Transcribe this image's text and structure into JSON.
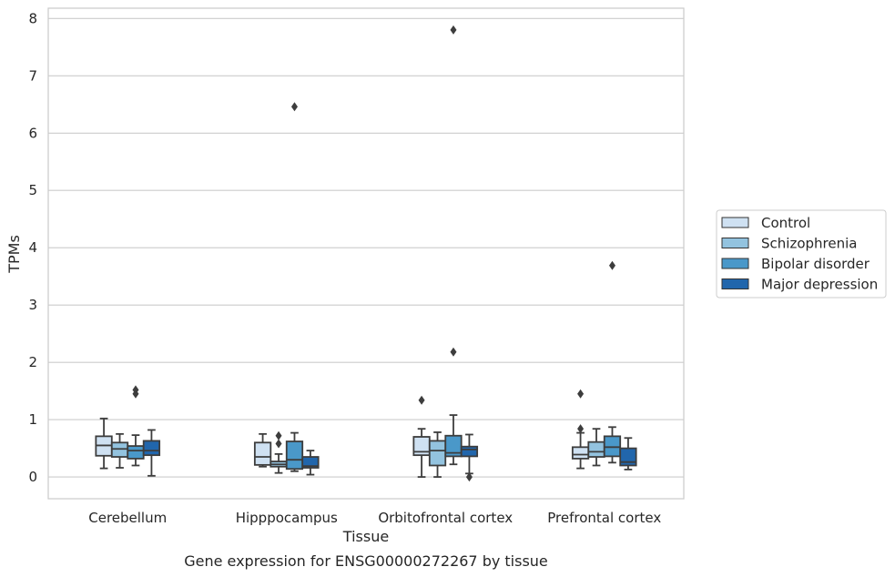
{
  "chart_data": {
    "type": "box",
    "title": "",
    "caption": "Gene expression for ENSG00000272267 by tissue",
    "xlabel": "Tissue",
    "ylabel": "TPMs",
    "ylim": [
      -0.38,
      8.18
    ],
    "yticks": [
      0,
      1,
      2,
      3,
      4,
      5,
      6,
      7,
      8
    ],
    "grid": "horizontal",
    "legend_position": "right",
    "categories": [
      "Cerebellum",
      "Hipppocampus",
      "Orbitofrontal cortex",
      "Prefrontal cortex"
    ],
    "series": [
      {
        "name": "Control",
        "color": "#cfe1f2",
        "boxes": [
          {
            "whislo": 0.15,
            "q1": 0.37,
            "med": 0.55,
            "q3": 0.71,
            "whishi": 1.02,
            "fliers": []
          },
          {
            "whislo": 0.18,
            "q1": 0.21,
            "med": 0.35,
            "q3": 0.6,
            "whishi": 0.75,
            "fliers": []
          },
          {
            "whislo": 0.0,
            "q1": 0.38,
            "med": 0.44,
            "q3": 0.7,
            "whishi": 0.84,
            "fliers": [
              1.34
            ]
          },
          {
            "whislo": 0.15,
            "q1": 0.32,
            "med": 0.39,
            "q3": 0.52,
            "whishi": 0.77,
            "fliers": [
              0.84,
              1.45
            ]
          }
        ]
      },
      {
        "name": "Schizophrenia",
        "color": "#93c3df",
        "boxes": [
          {
            "whislo": 0.16,
            "q1": 0.35,
            "med": 0.49,
            "q3": 0.6,
            "whishi": 0.75,
            "fliers": []
          },
          {
            "whislo": 0.07,
            "q1": 0.18,
            "med": 0.22,
            "q3": 0.27,
            "whishi": 0.4,
            "fliers": [
              0.58,
              0.72
            ]
          },
          {
            "whislo": 0.0,
            "q1": 0.2,
            "med": 0.46,
            "q3": 0.63,
            "whishi": 0.78,
            "fliers": []
          },
          {
            "whislo": 0.2,
            "q1": 0.35,
            "med": 0.44,
            "q3": 0.61,
            "whishi": 0.84,
            "fliers": []
          }
        ]
      },
      {
        "name": "Bipolar disorder",
        "color": "#4a98c9",
        "boxes": [
          {
            "whislo": 0.2,
            "q1": 0.32,
            "med": 0.46,
            "q3": 0.54,
            "whishi": 0.73,
            "fliers": [
              1.45,
              1.52
            ]
          },
          {
            "whislo": 0.1,
            "q1": 0.14,
            "med": 0.3,
            "q3": 0.62,
            "whishi": 0.77,
            "fliers": [
              6.46
            ]
          },
          {
            "whislo": 0.22,
            "q1": 0.36,
            "med": 0.42,
            "q3": 0.72,
            "whishi": 1.08,
            "fliers": [
              2.18,
              7.8
            ]
          },
          {
            "whislo": 0.25,
            "q1": 0.36,
            "med": 0.52,
            "q3": 0.71,
            "whishi": 0.87,
            "fliers": [
              3.69
            ]
          }
        ]
      },
      {
        "name": "Major depression",
        "color": "#2166ac",
        "boxes": [
          {
            "whislo": 0.02,
            "q1": 0.38,
            "med": 0.46,
            "q3": 0.63,
            "whishi": 0.82,
            "fliers": []
          },
          {
            "whislo": 0.04,
            "q1": 0.16,
            "med": 0.19,
            "q3": 0.35,
            "whishi": 0.46,
            "fliers": []
          },
          {
            "whislo": 0.06,
            "q1": 0.36,
            "med": 0.48,
            "q3": 0.53,
            "whishi": 0.74,
            "fliers": [
              0.0
            ]
          },
          {
            "whislo": 0.13,
            "q1": 0.2,
            "med": 0.26,
            "q3": 0.5,
            "whishi": 0.68,
            "fliers": []
          }
        ]
      }
    ]
  }
}
